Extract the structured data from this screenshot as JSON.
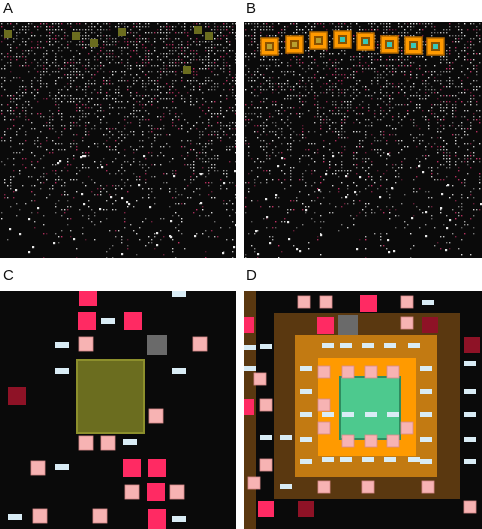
{
  "panels": {
    "a": {
      "label": "A"
    },
    "b": {
      "label": "B"
    },
    "c": {
      "label": "C"
    },
    "d": {
      "label": "D"
    }
  },
  "colors": {
    "background": "#0a0a0a",
    "dot_white": "#e6e6e6",
    "dot_pink": "#c83268",
    "olive": "#6b6d1f",
    "olive_edge": "#8c8f2c",
    "red_tile": "#ff2a63",
    "dark_red_tile": "#8e1226",
    "pink_tile": "#f7b3b3",
    "light_bar": "#d9ecf5",
    "gray_tile": "#6a6a6a",
    "orange": "#ff9a00",
    "dark_orange": "#8a5200",
    "brown": "#5a3810",
    "mid_orange": "#c27a12",
    "green": "#4dc98e",
    "teal": "#38c7b7"
  }
}
